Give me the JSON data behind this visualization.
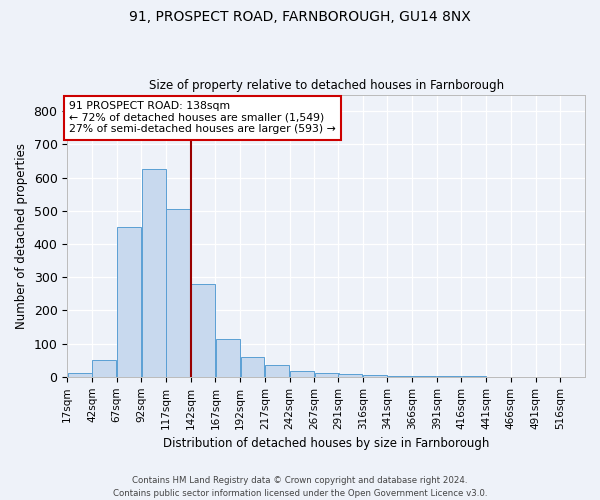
{
  "title1": "91, PROSPECT ROAD, FARNBOROUGH, GU14 8NX",
  "title2": "Size of property relative to detached houses in Farnborough",
  "xlabel": "Distribution of detached houses by size in Farnborough",
  "ylabel": "Number of detached properties",
  "bar_color": "#c8d9ee",
  "bar_edge_color": "#5a9fd4",
  "vline_x": 142,
  "vline_color": "#990000",
  "bin_edges": [
    17,
    42,
    67,
    92,
    117,
    142,
    167,
    192,
    217,
    242,
    267,
    291,
    316,
    341,
    366,
    391,
    416,
    441,
    466,
    491,
    516
  ],
  "bar_heights": [
    10,
    50,
    450,
    625,
    505,
    280,
    115,
    60,
    35,
    18,
    10,
    8,
    4,
    3,
    2,
    1,
    1,
    0,
    0,
    0
  ],
  "annotation_line1": "91 PROSPECT ROAD: 138sqm",
  "annotation_line2": "← 72% of detached houses are smaller (1,549)",
  "annotation_line3": "27% of semi-detached houses are larger (593) →",
  "annotation_box_color": "white",
  "annotation_box_edge_color": "#cc0000",
  "ylim": [
    0,
    850
  ],
  "xlim": [
    17,
    541
  ],
  "yticks": [
    0,
    100,
    200,
    300,
    400,
    500,
    600,
    700,
    800
  ],
  "tick_labels": [
    "17sqm",
    "42sqm",
    "67sqm",
    "92sqm",
    "117sqm",
    "142sqm",
    "167sqm",
    "192sqm",
    "217sqm",
    "242sqm",
    "267sqm",
    "291sqm",
    "316sqm",
    "341sqm",
    "366sqm",
    "391sqm",
    "416sqm",
    "441sqm",
    "466sqm",
    "491sqm",
    "516sqm"
  ],
  "footer_text": "Contains HM Land Registry data © Crown copyright and database right 2024.\nContains public sector information licensed under the Open Government Licence v3.0.",
  "bg_color": "#eef2f9",
  "grid_color": "#ffffff",
  "fig_width": 6.0,
  "fig_height": 5.0,
  "dpi": 100
}
